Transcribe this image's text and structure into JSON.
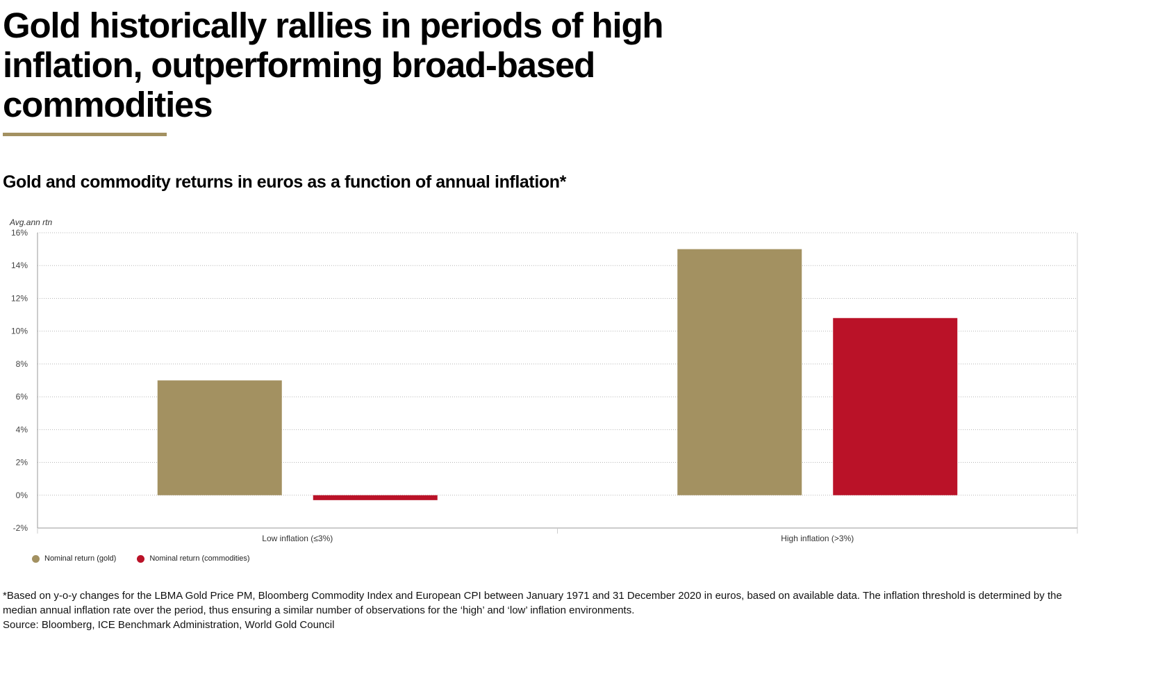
{
  "header": {
    "title": "Gold historically rallies in periods of high inflation, outperforming broad-based commodities",
    "accent_color": "#A39161"
  },
  "chart_data": {
    "type": "bar",
    "title": "Gold and commodity returns in euros as a function of annual inflation*",
    "ylabel": "Avg.ann rtn",
    "xlabel": "",
    "ylim": [
      -2,
      16
    ],
    "yticks": [
      -2,
      0,
      2,
      4,
      6,
      8,
      10,
      12,
      14,
      16
    ],
    "ytick_format": "{v}%",
    "grid": true,
    "legend_position": "bottom-left",
    "categories": [
      "Low inflation (≤3%)",
      "High inflation (>3%)"
    ],
    "series": [
      {
        "name": "Nominal return (gold)",
        "color": "#A39161",
        "values": [
          7.0,
          15.0
        ]
      },
      {
        "name": "Nominal return (commodities)",
        "color": "#BA1228",
        "values": [
          -0.3,
          10.8
        ]
      }
    ]
  },
  "footnote": {
    "note": "*Based on y-o-y changes for the LBMA Gold Price PM, Bloomberg Commodity Index and European CPI between January 1971 and 31 December 2020 in euros, based on available data. The inflation threshold is determined by the median annual inflation rate over the period, thus ensuring a similar number of observations for the ‘high’ and ‘low’ inflation environments.",
    "source": "Source: Bloomberg, ICE Benchmark Administration, World Gold Council"
  }
}
